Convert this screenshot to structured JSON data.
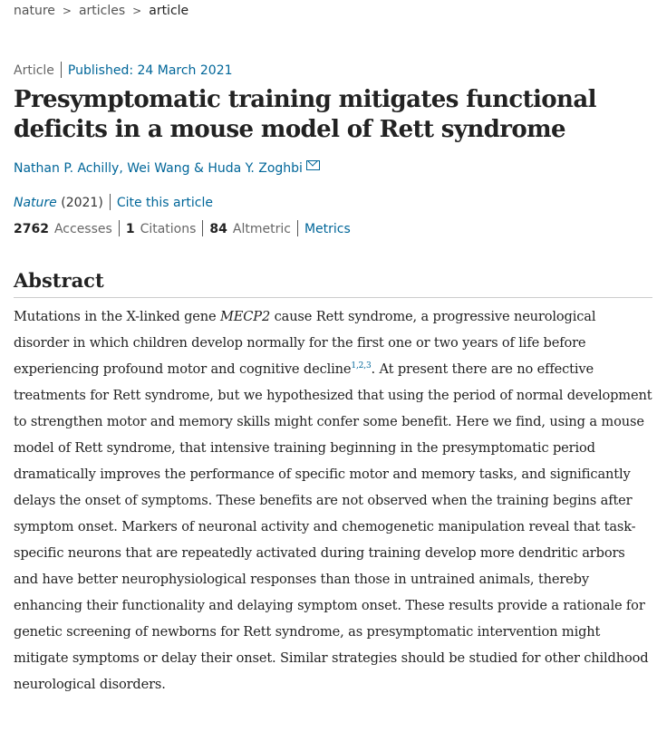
{
  "breadcrumb": [
    "nature",
    "articles",
    "article"
  ],
  "meta": {
    "type": "Article",
    "published": "Published: 24 March 2021"
  },
  "title": "Presymptomatic training mitigates functional deficits in a mouse model of Rett syndrome",
  "authors": "Nathan P. Achilly, Wei Wang & Huda Y. Zoghbi",
  "journal": {
    "name": "Nature",
    "year": "(2021)",
    "cite": "Cite this article"
  },
  "metrics": {
    "accesses": "2762",
    "accesses_label": "Accesses",
    "citations": "1",
    "citations_label": "Citations",
    "altmetric": "84",
    "altmetric_label": "Altmetric",
    "metrics_link": "Metrics"
  },
  "abstract": {
    "heading": "Abstract",
    "p1": "Mutations in the X-linked gene ",
    "gene": "MECP2",
    "p2": " cause Rett syndrome, a progressive neurological disorder in which children develop normally for the first one or two years of life before experiencing profound motor and cognitive decline",
    "refs": "1,2,3",
    "p3": ". At present there are no effective treatments for Rett syndrome, but we hypothesized that using the period of normal development to strengthen motor and memory skills might confer some benefit. Here we find, using a mouse model of Rett syndrome, that intensive training beginning in the presymptomatic period dramatically improves the performance of specific motor and memory tasks, and significantly delays the onset of symptoms. These benefits are not observed when the training begins after symptom onset. Markers of neuronal activity and chemogenetic manipulation reveal that task-specific neurons that are repeatedly activated during training develop more dendritic arbors and have better neurophysiological responses than those in untrained animals, thereby enhancing their functionality and delaying symptom onset. These results provide a rationale for genetic screening of newborns for Rett syndrome, as presymptomatic intervention might mitigate symptoms or delay their onset. Similar strategies should be studied for other childhood neurological disorders."
  }
}
